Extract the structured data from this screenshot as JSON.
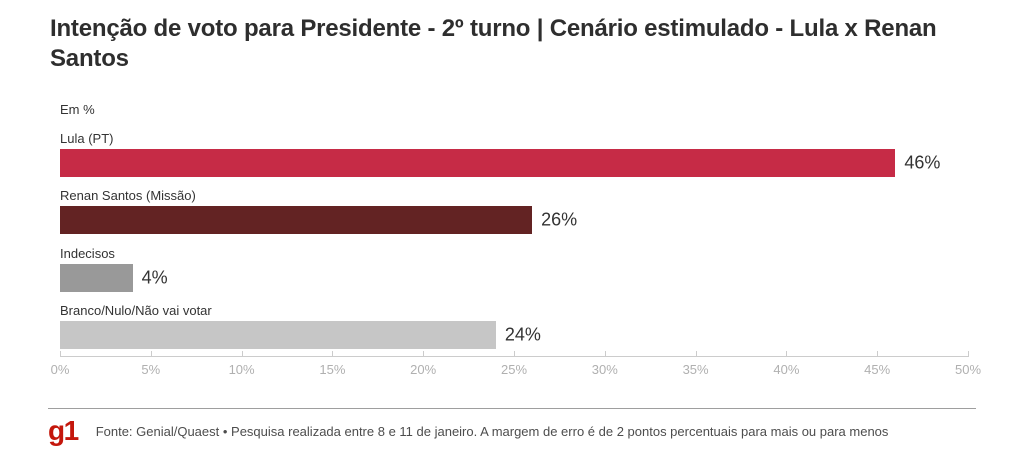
{
  "title": "Intenção de voto para Presidente - 2º turno | Cenário estimulado - Lula x Renan Santos",
  "chart_data": {
    "type": "bar",
    "orientation": "horizontal",
    "unit_label": "Em %",
    "categories": [
      "Lula (PT)",
      "Renan Santos (Missão)",
      "Indecisos",
      "Branco/Nulo/Não vai votar"
    ],
    "values": [
      46,
      26,
      4,
      24
    ],
    "value_labels": [
      "46%",
      "26%",
      "4%",
      "24%"
    ],
    "bar_colors": [
      "#c62b46",
      "#632323",
      "#999999",
      "#c6c6c6"
    ],
    "xlim": [
      0,
      50
    ],
    "x_tick_step": 5,
    "x_tick_labels": [
      "0%",
      "5%",
      "10%",
      "15%",
      "20%",
      "25%",
      "30%",
      "35%",
      "40%",
      "45%",
      "50%"
    ],
    "grid": false,
    "legend": "none",
    "label_color": "#333333",
    "axis_label_color": "#b0b0b0"
  },
  "footer": {
    "logo_text": "g1",
    "logo_color": "#c4170c",
    "source_text": "Fonte: Genial/Quaest • Pesquisa realizada entre 8 e 11 de janeiro. A margem de erro é de 2 pontos percentuais para mais ou para menos"
  }
}
